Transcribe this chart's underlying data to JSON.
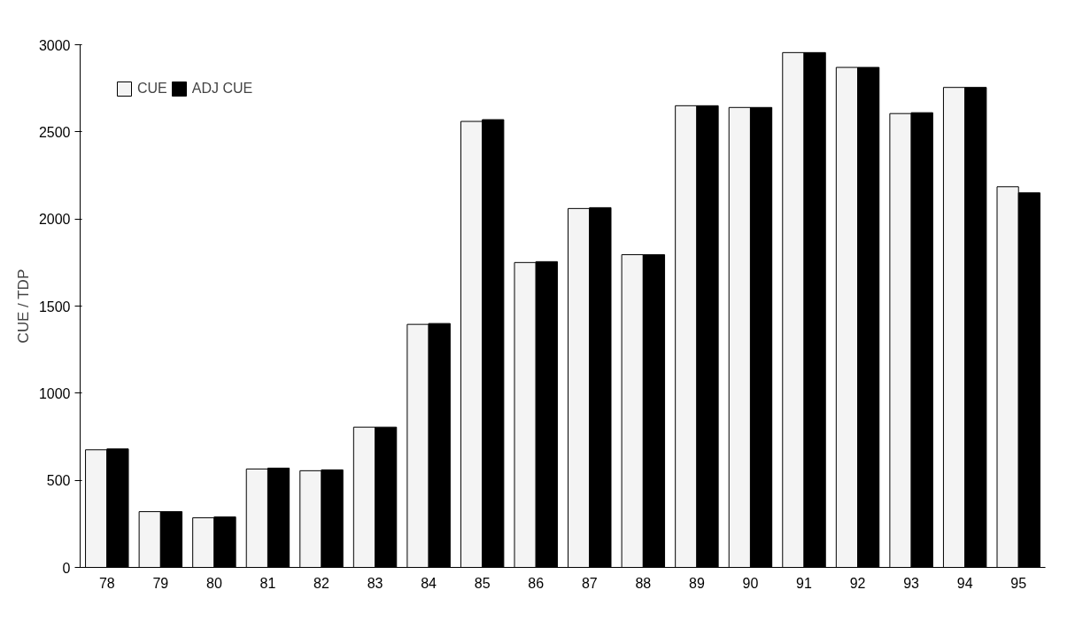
{
  "chart_data": {
    "type": "bar",
    "ylabel": "CUE / TDP",
    "categories": [
      "78",
      "79",
      "80",
      "81",
      "82",
      "83",
      "84",
      "85",
      "86",
      "87",
      "88",
      "89",
      "90",
      "91",
      "92",
      "93",
      "94",
      "95"
    ],
    "series": [
      {
        "name": "CUE",
        "color": "#f4f4f4",
        "values": [
          675,
          320,
          285,
          565,
          555,
          805,
          1395,
          2560,
          1750,
          2060,
          1795,
          2650,
          2640,
          2955,
          2870,
          2605,
          2755,
          2185
        ]
      },
      {
        "name": "ADJ CUE",
        "color": "#000000",
        "values": [
          680,
          320,
          290,
          570,
          560,
          805,
          1400,
          2570,
          1755,
          2065,
          1795,
          2650,
          2640,
          2955,
          2870,
          2610,
          2755,
          2150
        ]
      }
    ],
    "ylim": [
      0,
      3000
    ],
    "yticks": [
      0,
      500,
      1000,
      1500,
      2000,
      2500,
      3000
    ],
    "grid": false,
    "legend": "top left"
  }
}
